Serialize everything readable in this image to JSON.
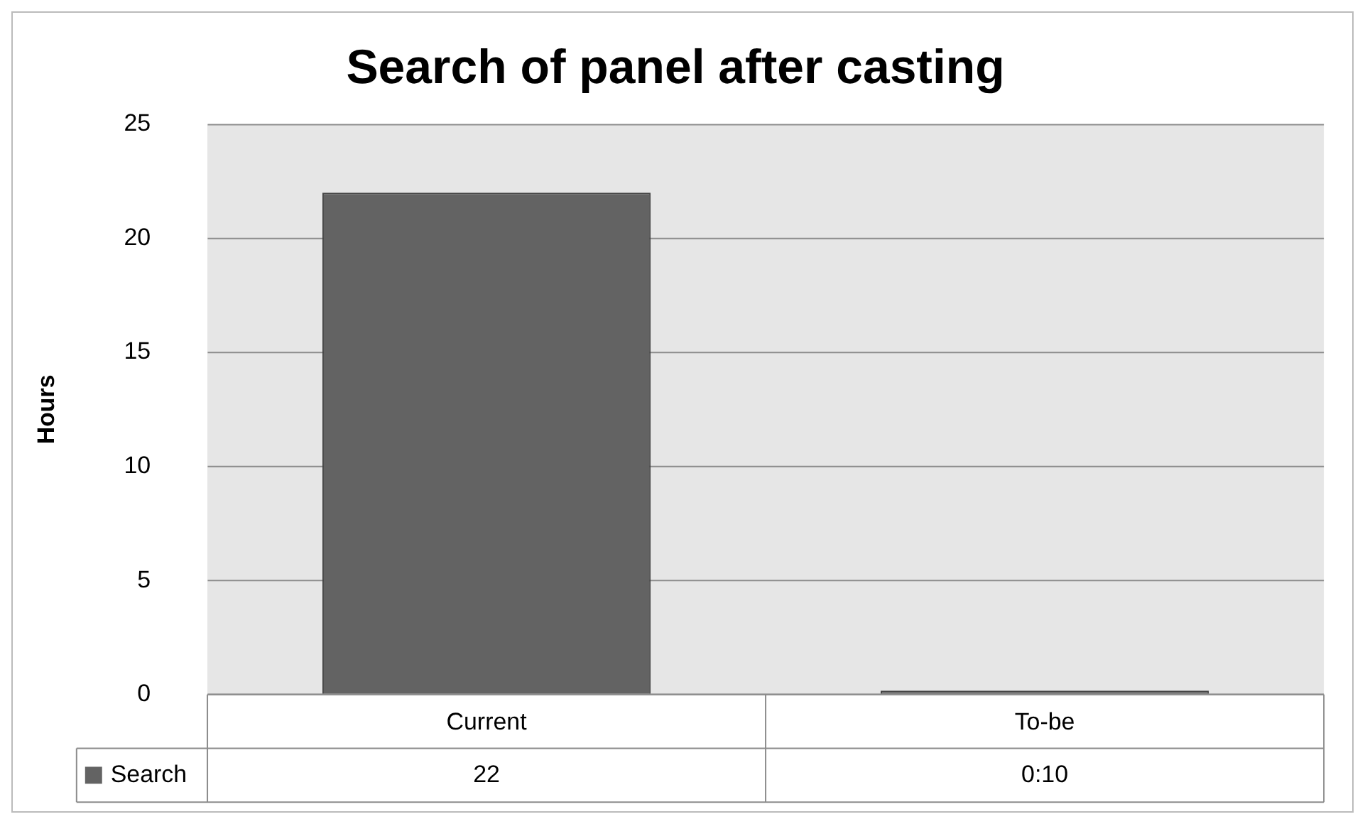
{
  "chart_data": {
    "type": "bar",
    "title": "Search of panel after casting",
    "ylabel": "Hours",
    "categories": [
      "Current",
      "To-be"
    ],
    "series": [
      {
        "name": "Search",
        "color": "#636363",
        "values": [
          22,
          0.17
        ],
        "value_labels": [
          "22",
          "0:10"
        ]
      }
    ],
    "ylim": [
      0,
      25
    ],
    "yticks": [
      0,
      5,
      10,
      15,
      20,
      25
    ],
    "grid": "y",
    "legend": "bottom left"
  }
}
